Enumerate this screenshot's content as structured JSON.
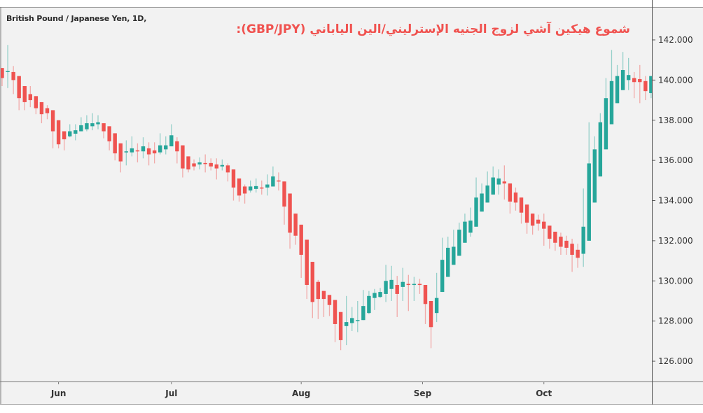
{
  "chart_data": {
    "type": "candlestick",
    "style": "heikin-ashi",
    "symbol_label": "British Pound / Japanese Yen, 1D,",
    "title": "شموع هيكين آشي لزوج الجنيه الإسترليني/الين الياباني (GBP/JPY):",
    "ylim": [
      125.4,
      142.5
    ],
    "yticks": [
      142,
      140,
      138,
      136,
      134,
      132,
      130,
      128,
      126
    ],
    "ytick_labels": [
      "142.000",
      "140.000",
      "138.000",
      "136.000",
      "134.000",
      "132.000",
      "130.000",
      "128.000",
      "126.000"
    ],
    "xticks": [
      {
        "label": "Jun",
        "index": 10
      },
      {
        "label": "Jul",
        "index": 30
      },
      {
        "label": "Aug",
        "index": 53
      },
      {
        "label": "Sep",
        "index": 74.5
      },
      {
        "label": "Oct",
        "index": 96
      }
    ],
    "colors": {
      "up": "#26a69a",
      "down": "#ef5350",
      "title": "#f0524f",
      "background": "#f2f2f2"
    },
    "ohlc_fields": [
      "open",
      "high",
      "low",
      "close"
    ],
    "ohlc": [
      [
        140.6,
        140.6,
        139.7,
        140.1
      ],
      [
        140.4,
        141.75,
        139.6,
        140.45
      ],
      [
        140.4,
        140.7,
        139.3,
        140.0
      ],
      [
        140.2,
        140.2,
        138.5,
        139.1
      ],
      [
        139.7,
        139.7,
        138.5,
        138.9
      ],
      [
        139.3,
        139.7,
        138.65,
        139.0
      ],
      [
        139.2,
        139.2,
        138.3,
        138.6
      ],
      [
        138.9,
        138.9,
        137.85,
        138.3
      ],
      [
        138.6,
        138.75,
        138.05,
        138.35
      ],
      [
        138.5,
        138.5,
        136.6,
        137.45
      ],
      [
        138.0,
        138.0,
        136.6,
        136.8
      ],
      [
        137.45,
        137.45,
        136.5,
        137.05
      ],
      [
        137.2,
        137.8,
        137.15,
        137.45
      ],
      [
        137.33,
        137.8,
        137.0,
        137.5
      ],
      [
        137.45,
        138.15,
        137.45,
        137.75
      ],
      [
        137.55,
        138.25,
        137.45,
        137.85
      ],
      [
        137.7,
        138.35,
        137.5,
        137.85
      ],
      [
        137.8,
        138.25,
        137.55,
        137.9
      ],
      [
        137.85,
        137.85,
        137.1,
        137.45
      ],
      [
        137.7,
        137.7,
        136.5,
        136.95
      ],
      [
        137.35,
        137.35,
        136.0,
        136.35
      ],
      [
        136.85,
        136.85,
        135.4,
        135.95
      ],
      [
        136.4,
        137.0,
        135.75,
        136.45
      ],
      [
        136.4,
        137.2,
        136.2,
        136.6
      ],
      [
        136.5,
        136.85,
        135.9,
        136.45
      ],
      [
        136.45,
        137.15,
        136.1,
        136.7
      ],
      [
        136.6,
        136.9,
        135.75,
        136.3
      ],
      [
        136.5,
        136.9,
        135.85,
        136.35
      ],
      [
        136.4,
        137.35,
        136.3,
        136.75
      ],
      [
        136.55,
        137.2,
        136.3,
        136.75
      ],
      [
        136.7,
        137.8,
        136.7,
        137.25
      ],
      [
        136.95,
        137.15,
        135.85,
        136.45
      ],
      [
        136.75,
        136.75,
        135.15,
        135.6
      ],
      [
        136.2,
        136.2,
        135.4,
        135.55
      ],
      [
        135.85,
        136.05,
        135.5,
        135.7
      ],
      [
        135.8,
        136.15,
        135.55,
        135.9
      ],
      [
        135.87,
        136.3,
        135.4,
        135.85
      ],
      [
        135.87,
        136.1,
        135.5,
        135.7
      ],
      [
        135.8,
        136.1,
        135.05,
        135.6
      ],
      [
        135.7,
        136.05,
        135.5,
        135.77
      ],
      [
        135.75,
        135.85,
        134.95,
        135.4
      ],
      [
        135.55,
        135.55,
        134.0,
        134.65
      ],
      [
        135.1,
        135.1,
        133.95,
        134.25
      ],
      [
        134.7,
        134.8,
        133.85,
        134.35
      ],
      [
        134.5,
        135.0,
        134.4,
        134.7
      ],
      [
        134.58,
        135.1,
        134.4,
        134.72
      ],
      [
        134.65,
        135.0,
        134.3,
        134.6
      ],
      [
        134.65,
        135.3,
        134.25,
        134.8
      ],
      [
        134.7,
        135.7,
        134.7,
        135.2
      ],
      [
        135.0,
        135.4,
        134.5,
        134.95
      ],
      [
        134.95,
        134.95,
        132.8,
        133.7
      ],
      [
        134.35,
        134.35,
        131.6,
        132.4
      ],
      [
        133.35,
        133.35,
        131.8,
        132.25
      ],
      [
        132.8,
        132.8,
        130.15,
        131.3
      ],
      [
        132.05,
        132.05,
        129.1,
        129.8
      ],
      [
        130.95,
        130.95,
        128.15,
        128.95
      ],
      [
        129.95,
        130.05,
        128.1,
        129.1
      ],
      [
        129.5,
        129.5,
        128.2,
        129.1
      ],
      [
        129.3,
        129.3,
        128.25,
        128.8
      ],
      [
        129.05,
        129.05,
        126.95,
        127.85
      ],
      [
        128.45,
        128.45,
        126.55,
        127.05
      ],
      [
        127.75,
        129.25,
        126.8,
        127.95
      ],
      [
        127.9,
        128.7,
        127.5,
        128.15
      ],
      [
        128.0,
        129.0,
        127.45,
        128.05
      ],
      [
        128.05,
        129.55,
        128.05,
        128.75
      ],
      [
        128.4,
        129.5,
        128.35,
        129.25
      ],
      [
        129.15,
        129.6,
        128.55,
        129.4
      ],
      [
        129.2,
        129.65,
        129.15,
        129.45
      ],
      [
        129.35,
        130.8,
        128.95,
        130.0
      ],
      [
        129.6,
        130.75,
        129.0,
        130.05
      ],
      [
        129.8,
        130.25,
        128.2,
        129.35
      ],
      [
        129.7,
        130.65,
        129.0,
        129.95
      ],
      [
        129.85,
        130.3,
        128.5,
        129.8
      ],
      [
        129.8,
        130.2,
        129.0,
        129.85
      ],
      [
        129.85,
        130.1,
        129.35,
        129.8
      ],
      [
        129.8,
        129.8,
        127.85,
        128.85
      ],
      [
        129.0,
        129.0,
        126.65,
        127.7
      ],
      [
        128.4,
        130.4,
        127.95,
        129.15
      ],
      [
        129.45,
        132.15,
        129.45,
        131.05
      ],
      [
        130.2,
        132.2,
        130.2,
        131.65
      ],
      [
        130.8,
        132.55,
        130.8,
        131.7
      ],
      [
        131.25,
        132.9,
        131.25,
        132.55
      ],
      [
        131.9,
        133.35,
        131.9,
        132.95
      ],
      [
        132.4,
        133.65,
        132.2,
        133.0
      ],
      [
        132.7,
        135.15,
        132.7,
        134.15
      ],
      [
        133.45,
        134.85,
        133.45,
        134.35
      ],
      [
        133.9,
        135.45,
        133.9,
        134.75
      ],
      [
        134.3,
        135.7,
        134.3,
        135.15
      ],
      [
        134.8,
        135.55,
        134.3,
        135.1
      ],
      [
        134.95,
        135.75,
        134.05,
        134.85
      ],
      [
        134.85,
        134.85,
        133.35,
        133.95
      ],
      [
        134.4,
        134.65,
        133.5,
        133.9
      ],
      [
        134.15,
        134.15,
        132.85,
        133.4
      ],
      [
        133.8,
        133.8,
        132.35,
        132.9
      ],
      [
        133.35,
        133.35,
        132.3,
        132.75
      ],
      [
        133.05,
        133.3,
        132.5,
        132.85
      ],
      [
        132.95,
        133.35,
        131.75,
        132.6
      ],
      [
        132.75,
        132.75,
        131.6,
        132.1
      ],
      [
        132.45,
        132.45,
        131.5,
        131.9
      ],
      [
        132.2,
        132.4,
        131.3,
        131.7
      ],
      [
        132.0,
        132.25,
        131.3,
        131.65
      ],
      [
        131.85,
        132.1,
        130.45,
        131.3
      ],
      [
        131.55,
        131.85,
        130.65,
        131.15
      ],
      [
        131.35,
        134.6,
        130.7,
        132.7
      ],
      [
        132.0,
        137.9,
        132.0,
        135.85
      ],
      [
        133.9,
        137.2,
        133.9,
        136.55
      ],
      [
        135.2,
        138.35,
        135.2,
        137.9
      ],
      [
        136.55,
        140.1,
        136.55,
        139.1
      ],
      [
        137.8,
        141.5,
        137.8,
        139.95
      ],
      [
        138.85,
        140.75,
        138.85,
        140.2
      ],
      [
        139.5,
        141.4,
        139.5,
        140.5
      ],
      [
        140.0,
        141.1,
        139.5,
        140.25
      ],
      [
        140.1,
        140.4,
        139.1,
        139.9
      ],
      [
        140.05,
        140.75,
        138.85,
        139.9
      ],
      [
        139.95,
        140.2,
        139.0,
        139.45
      ],
      [
        139.35,
        140.2,
        139.1,
        140.2
      ]
    ]
  }
}
